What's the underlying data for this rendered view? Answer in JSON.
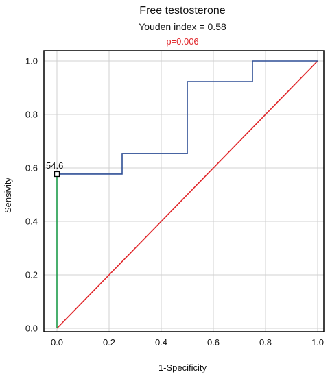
{
  "colors": {
    "roc": "#2f4f95",
    "diagonal": "#e0262a",
    "cutoff_marker": "#1c9b4a",
    "p_value": "#e0262a",
    "grid": "#d0d0d0",
    "frame": "#000000"
  },
  "chart_data": {
    "type": "line",
    "title": "Free testosterone",
    "subtitle": "Youden index  = 0.58",
    "annotation_p": "p=0.006",
    "xlabel": "1-Specificity",
    "ylabel": "Sensivity",
    "xlim": [
      0.0,
      1.0
    ],
    "ylim": [
      0.0,
      1.0
    ],
    "grid": true,
    "x_ticks": [
      "0.0",
      "0.2",
      "0.4",
      "0.6",
      "0.8",
      "1.0"
    ],
    "y_ticks": [
      "0.0",
      "0.2",
      "0.4",
      "0.6",
      "0.8",
      "1.0"
    ],
    "series": [
      {
        "role": "roc",
        "x": [
          0.0,
          0.25,
          0.25,
          0.5,
          0.5,
          0.75,
          0.75,
          1.0
        ],
        "y": [
          0.577,
          0.577,
          0.654,
          0.654,
          0.923,
          0.923,
          1.0,
          1.0
        ]
      },
      {
        "role": "reference",
        "x": [
          0.0,
          1.0
        ],
        "y": [
          0.0,
          1.0
        ]
      },
      {
        "role": "cutoff",
        "x": [
          0.0,
          0.0
        ],
        "y": [
          0.0,
          0.577
        ]
      }
    ],
    "cutoff_point": {
      "x": 0.0,
      "y": 0.577,
      "label": "54.6"
    }
  }
}
